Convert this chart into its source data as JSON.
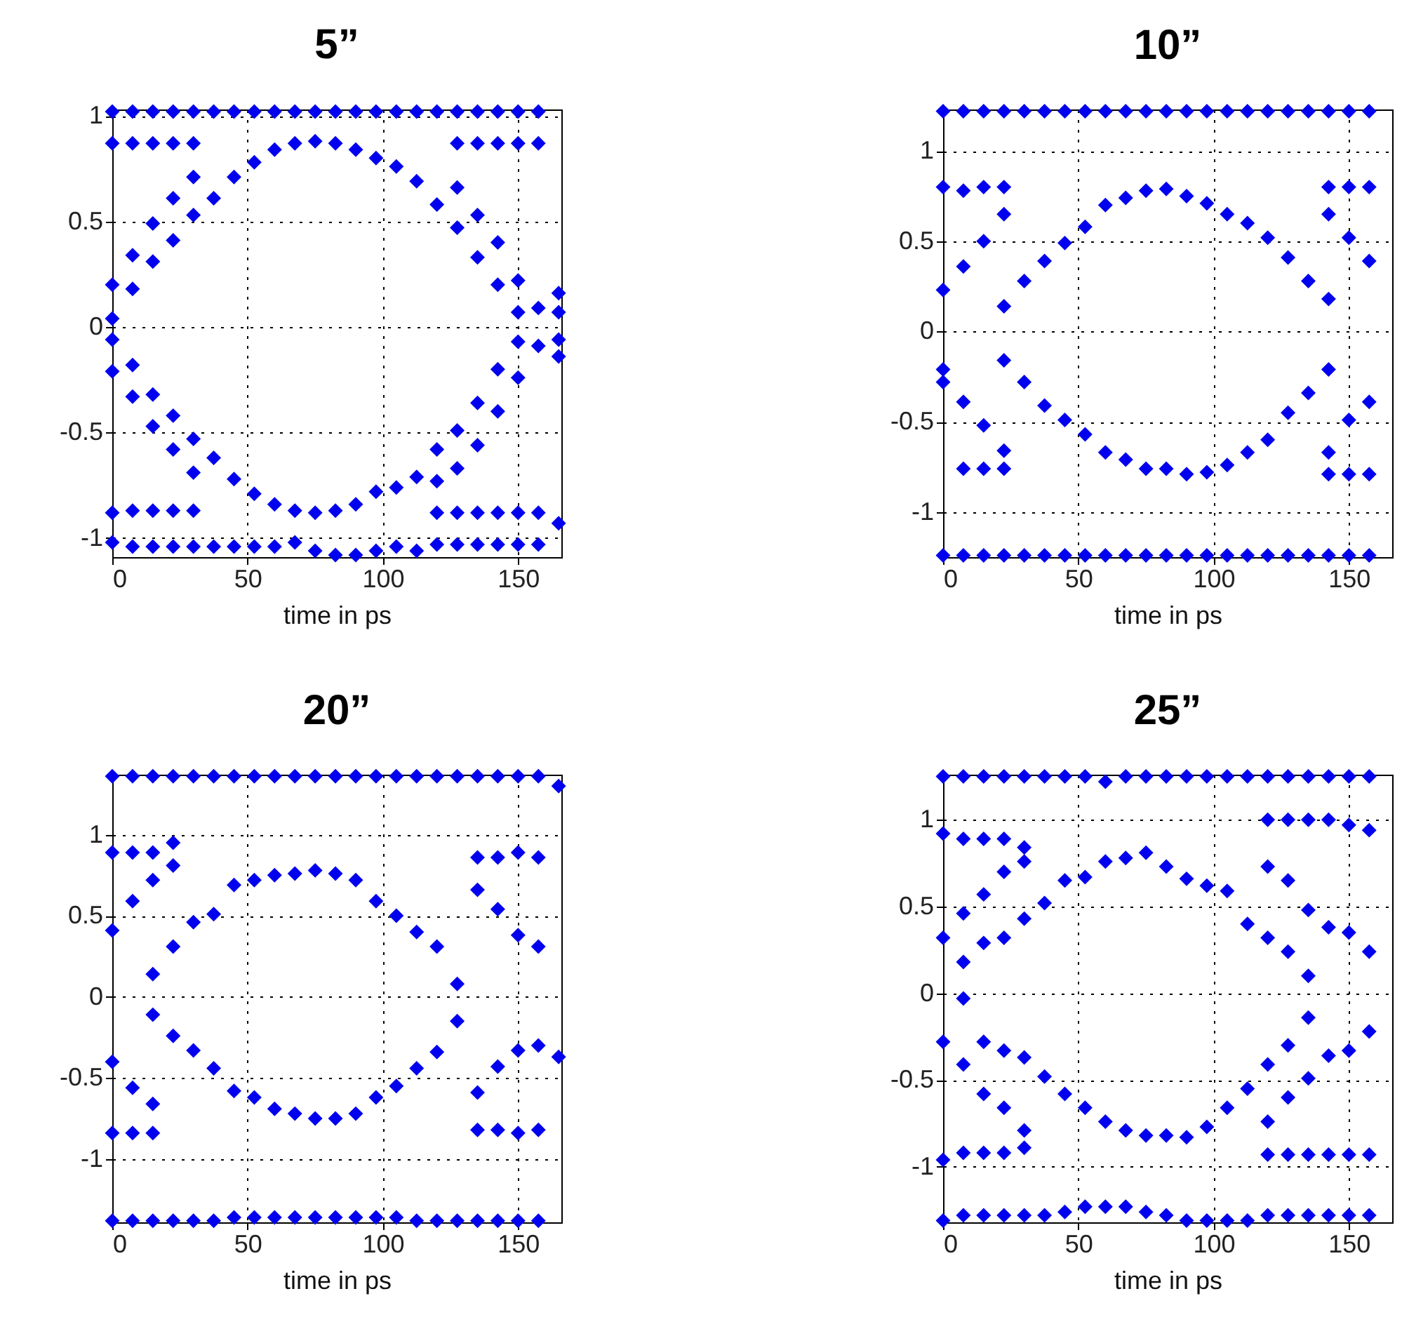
{
  "chart_data": [
    {
      "type": "scatter",
      "title": "5”",
      "xlabel": "time in ps",
      "xlim": [
        0,
        166
      ],
      "ylim": [
        -1.09,
        1.03
      ],
      "xticks": [
        0,
        50,
        100,
        150
      ],
      "yticks": [
        -1,
        -0.5,
        0,
        0.5,
        1
      ],
      "grid": true,
      "marker": "diamond",
      "x": [
        0,
        0,
        0,
        0,
        0,
        0,
        0,
        0,
        7.5,
        7.5,
        7.5,
        7.5,
        7.5,
        7.5,
        7.5,
        7.5,
        15,
        15,
        15,
        15,
        15,
        15,
        15,
        15,
        22.5,
        22.5,
        22.5,
        22.5,
        22.5,
        22.5,
        22.5,
        22.5,
        30,
        30,
        30,
        30,
        30,
        30,
        30,
        30,
        37.5,
        37.5,
        37.5,
        37.5,
        45,
        45,
        45,
        45,
        52.5,
        52.5,
        52.5,
        52.5,
        60,
        60,
        60,
        60,
        67.5,
        67.5,
        67.5,
        67.5,
        75,
        75,
        75,
        75,
        82.5,
        82.5,
        82.5,
        82.5,
        90,
        90,
        90,
        90,
        97.5,
        97.5,
        97.5,
        97.5,
        105,
        105,
        105,
        105,
        112.5,
        112.5,
        112.5,
        112.5,
        120,
        120,
        120,
        120,
        120,
        120,
        127.5,
        127.5,
        127.5,
        127.5,
        127.5,
        127.5,
        127.5,
        127.5,
        135,
        135,
        135,
        135,
        135,
        135,
        135,
        135,
        142.5,
        142.5,
        142.5,
        142.5,
        142.5,
        142.5,
        142.5,
        142.5,
        150,
        150,
        150,
        150,
        150,
        150,
        150,
        150,
        157.5,
        157.5,
        157.5,
        157.5,
        157.5,
        157.5,
        165,
        165,
        165,
        165,
        165
      ],
      "series": [
        {
          "color": "#0000ee",
          "values": [
            1.02,
            0.87,
            0.2,
            0.04,
            -0.06,
            -0.21,
            -0.88,
            -1.02,
            1.02,
            0.87,
            0.34,
            0.18,
            -0.18,
            -0.33,
            -0.87,
            -1.04,
            1.02,
            0.87,
            0.49,
            0.31,
            -0.32,
            -0.47,
            -0.87,
            -1.04,
            1.02,
            0.87,
            0.61,
            0.41,
            -0.42,
            -0.58,
            -0.87,
            -1.04,
            1.02,
            0.87,
            0.71,
            0.53,
            -0.53,
            -0.69,
            -0.87,
            -1.04,
            1.02,
            0.61,
            -0.62,
            -1.04,
            1.02,
            0.71,
            -0.72,
            -1.04,
            1.02,
            0.78,
            -0.79,
            -1.04,
            1.02,
            0.84,
            -0.84,
            -1.04,
            1.02,
            0.87,
            -0.87,
            -1.02,
            1.02,
            0.88,
            -0.88,
            -1.06,
            1.02,
            0.87,
            -0.87,
            -1.08,
            1.02,
            0.84,
            -0.84,
            -1.08,
            1.02,
            0.8,
            -0.78,
            -1.06,
            1.02,
            0.76,
            -0.76,
            -1.04,
            1.02,
            0.69,
            -0.71,
            -1.06,
            1.02,
            0.58,
            -0.58,
            -0.73,
            -0.88,
            -1.03,
            1.02,
            0.87,
            0.66,
            0.47,
            -0.49,
            -0.67,
            -0.88,
            -1.03,
            1.02,
            0.87,
            0.53,
            0.33,
            -0.36,
            -0.56,
            -0.88,
            -1.03,
            1.02,
            0.87,
            0.4,
            0.2,
            -0.2,
            -0.4,
            -0.88,
            -1.03,
            1.02,
            0.87,
            0.22,
            0.07,
            -0.07,
            -0.24,
            -0.88,
            -1.03,
            1.02,
            0.87,
            0.09,
            -0.09,
            -0.88,
            -1.03,
            0.16,
            0.07,
            -0.06,
            -0.14,
            -0.93
          ]
        }
      ]
    },
    {
      "type": "scatter",
      "title": "10”",
      "xlabel": "time in ps",
      "xlim": [
        0,
        166
      ],
      "ylim": [
        -1.25,
        1.23
      ],
      "xticks": [
        0,
        50,
        100,
        150
      ],
      "yticks": [
        -1,
        -0.5,
        0,
        0.5,
        1
      ],
      "grid": true,
      "marker": "diamond",
      "x": [
        0,
        0,
        0,
        0,
        0,
        0,
        7.5,
        7.5,
        7.5,
        7.5,
        7.5,
        7.5,
        15,
        15,
        15,
        15,
        15,
        15,
        22.5,
        22.5,
        22.5,
        22.5,
        22.5,
        22.5,
        22.5,
        22.5,
        30,
        30,
        30,
        30,
        37.5,
        37.5,
        37.5,
        37.5,
        45,
        45,
        45,
        45,
        52.5,
        52.5,
        52.5,
        52.5,
        60,
        60,
        60,
        60,
        67.5,
        67.5,
        67.5,
        67.5,
        75,
        75,
        75,
        75,
        82.5,
        82.5,
        82.5,
        82.5,
        90,
        90,
        90,
        90,
        97.5,
        97.5,
        97.5,
        97.5,
        105,
        105,
        105,
        105,
        112.5,
        112.5,
        112.5,
        112.5,
        120,
        120,
        120,
        120,
        127.5,
        127.5,
        127.5,
        127.5,
        135,
        135,
        135,
        135,
        142.5,
        142.5,
        142.5,
        142.5,
        142.5,
        142.5,
        142.5,
        142.5,
        150,
        150,
        150,
        150,
        150,
        150,
        157.5,
        157.5,
        157.5,
        157.5,
        157.5,
        157.5
      ],
      "series": [
        {
          "color": "#0000ee",
          "values": [
            1.22,
            0.8,
            0.23,
            -0.21,
            -0.28,
            -1.24,
            1.22,
            0.78,
            0.36,
            -0.39,
            -0.76,
            -1.24,
            1.22,
            0.8,
            0.5,
            -0.52,
            -0.76,
            -1.24,
            1.22,
            0.8,
            0.65,
            0.14,
            -0.16,
            -0.66,
            -0.76,
            -1.24,
            1.22,
            0.28,
            -0.28,
            -1.24,
            1.22,
            0.39,
            -0.41,
            -1.24,
            1.22,
            0.49,
            -0.49,
            -1.24,
            1.22,
            0.58,
            -0.57,
            -1.24,
            1.22,
            0.7,
            -0.67,
            -1.24,
            1.22,
            0.74,
            -0.71,
            -1.24,
            1.22,
            0.78,
            -0.76,
            -1.24,
            1.22,
            0.79,
            -0.76,
            -1.24,
            1.22,
            0.75,
            -0.79,
            -1.24,
            1.22,
            0.71,
            -0.78,
            -1.24,
            1.22,
            0.65,
            -0.74,
            -1.24,
            1.22,
            0.6,
            -0.67,
            -1.24,
            1.22,
            0.52,
            -0.6,
            -1.24,
            1.22,
            0.41,
            -0.45,
            -1.24,
            1.22,
            0.28,
            -0.34,
            -1.24,
            1.22,
            0.8,
            0.65,
            0.18,
            -0.21,
            -0.67,
            -0.79,
            -1.24,
            1.22,
            0.8,
            0.52,
            -0.49,
            -0.79,
            -1.24,
            1.22,
            0.8,
            0.39,
            -0.39,
            -0.79,
            -1.24
          ]
        }
      ]
    },
    {
      "type": "scatter",
      "title": "20”",
      "xlabel": "time in ps",
      "xlim": [
        0,
        166
      ],
      "ylim": [
        -1.39,
        1.37
      ],
      "xticks": [
        0,
        50,
        100,
        150
      ],
      "yticks": [
        -1,
        -0.5,
        0,
        0.5,
        1
      ],
      "grid": true,
      "marker": "diamond",
      "x": [
        0,
        0,
        0,
        0,
        0,
        0,
        7.5,
        7.5,
        7.5,
        7.5,
        7.5,
        7.5,
        15,
        15,
        15,
        15,
        15,
        15,
        15,
        15,
        22.5,
        22.5,
        22.5,
        22.5,
        22.5,
        22.5,
        30,
        30,
        30,
        30,
        37.5,
        37.5,
        37.5,
        37.5,
        45,
        45,
        45,
        45,
        52.5,
        52.5,
        52.5,
        52.5,
        60,
        60,
        60,
        60,
        67.5,
        67.5,
        67.5,
        67.5,
        75,
        75,
        75,
        75,
        82.5,
        82.5,
        82.5,
        82.5,
        90,
        90,
        90,
        90,
        97.5,
        97.5,
        97.5,
        97.5,
        105,
        105,
        105,
        105,
        112.5,
        112.5,
        112.5,
        112.5,
        120,
        120,
        120,
        120,
        127.5,
        127.5,
        127.5,
        127.5,
        135,
        135,
        135,
        135,
        135,
        135,
        142.5,
        142.5,
        142.5,
        142.5,
        142.5,
        142.5,
        150,
        150,
        150,
        150,
        150,
        150,
        157.5,
        157.5,
        157.5,
        157.5,
        157.5,
        157.5,
        165,
        165
      ],
      "series": [
        {
          "color": "#0000ee",
          "values": [
            1.36,
            0.89,
            0.41,
            -0.4,
            -0.84,
            -1.38,
            1.36,
            0.89,
            0.59,
            -0.56,
            -0.84,
            -1.38,
            1.36,
            0.89,
            0.72,
            0.14,
            -0.11,
            -0.66,
            -0.84,
            -1.38,
            1.36,
            0.95,
            0.81,
            0.31,
            -0.24,
            -1.38,
            1.36,
            0.46,
            -0.33,
            -1.38,
            1.36,
            0.51,
            -0.44,
            -1.38,
            1.36,
            0.69,
            -0.58,
            -1.36,
            1.36,
            0.72,
            -0.62,
            -1.36,
            1.36,
            0.75,
            -0.69,
            -1.36,
            1.36,
            0.76,
            -0.72,
            -1.36,
            1.36,
            0.78,
            -0.75,
            -1.36,
            1.36,
            0.76,
            -0.75,
            -1.36,
            1.36,
            0.72,
            -0.72,
            -1.36,
            1.36,
            0.59,
            -0.62,
            -1.36,
            1.36,
            0.5,
            -0.55,
            -1.36,
            1.36,
            0.4,
            -0.44,
            -1.38,
            1.36,
            0.31,
            -0.34,
            -1.38,
            1.36,
            0.08,
            -0.15,
            -1.38,
            1.36,
            0.86,
            0.66,
            -0.59,
            -0.82,
            -1.38,
            1.36,
            0.86,
            0.54,
            -0.43,
            -0.82,
            -1.38,
            1.36,
            0.89,
            0.38,
            -0.33,
            -0.84,
            -1.38,
            1.36,
            0.86,
            0.31,
            -0.3,
            -0.82,
            -1.38,
            1.3,
            -0.37
          ]
        }
      ]
    },
    {
      "type": "scatter",
      "title": "25”",
      "xlabel": "time in ps",
      "xlim": [
        0,
        166
      ],
      "ylim": [
        -1.32,
        1.26
      ],
      "xticks": [
        0,
        50,
        100,
        150
      ],
      "yticks": [
        -1,
        -0.5,
        0,
        0.5,
        1
      ],
      "grid": true,
      "marker": "diamond",
      "x": [
        0,
        0,
        0,
        0,
        0,
        0,
        7.5,
        7.5,
        7.5,
        7.5,
        7.5,
        7.5,
        7.5,
        7.5,
        15,
        15,
        15,
        15,
        15,
        15,
        15,
        15,
        22.5,
        22.5,
        22.5,
        22.5,
        22.5,
        22.5,
        22.5,
        22.5,
        30,
        30,
        30,
        30,
        30,
        30,
        30,
        30,
        37.5,
        37.5,
        37.5,
        37.5,
        45,
        45,
        45,
        45,
        52.5,
        52.5,
        52.5,
        52.5,
        60,
        60,
        60,
        60,
        67.5,
        67.5,
        67.5,
        67.5,
        75,
        75,
        75,
        75,
        82.5,
        82.5,
        82.5,
        82.5,
        90,
        90,
        90,
        90,
        97.5,
        97.5,
        97.5,
        97.5,
        105,
        105,
        105,
        105,
        112.5,
        112.5,
        112.5,
        112.5,
        120,
        120,
        120,
        120,
        120,
        120,
        120,
        120,
        127.5,
        127.5,
        127.5,
        127.5,
        127.5,
        127.5,
        127.5,
        127.5,
        135,
        135,
        135,
        135,
        135,
        135,
        135,
        135,
        142.5,
        142.5,
        142.5,
        142.5,
        142.5,
        142.5,
        150,
        150,
        150,
        150,
        150,
        150,
        157.5,
        157.5,
        157.5,
        157.5,
        157.5,
        157.5
      ],
      "series": [
        {
          "color": "#0000ee",
          "values": [
            1.25,
            0.92,
            0.32,
            -0.28,
            -0.96,
            -1.31,
            1.25,
            0.89,
            0.46,
            0.18,
            -0.03,
            -0.41,
            -0.92,
            -1.28,
            1.25,
            0.89,
            0.57,
            0.29,
            -0.28,
            -0.58,
            -0.92,
            -1.28,
            1.25,
            0.89,
            0.7,
            0.32,
            -0.33,
            -0.66,
            -0.92,
            -1.28,
            1.25,
            0.84,
            0.76,
            0.43,
            -0.37,
            -0.79,
            -0.89,
            -1.28,
            1.25,
            0.52,
            -0.48,
            -1.28,
            1.25,
            0.65,
            -0.58,
            -1.26,
            1.25,
            0.67,
            -0.66,
            -1.23,
            1.22,
            0.76,
            -0.74,
            -1.23,
            1.25,
            0.78,
            -0.79,
            -1.23,
            1.25,
            0.81,
            -0.82,
            -1.26,
            1.25,
            0.73,
            -0.82,
            -1.28,
            1.25,
            0.66,
            -0.83,
            -1.31,
            1.25,
            0.62,
            -0.77,
            -1.31,
            1.25,
            0.59,
            -0.66,
            -1.31,
            1.25,
            0.4,
            -0.55,
            -1.31,
            1.25,
            1.0,
            0.73,
            0.32,
            -0.41,
            -0.74,
            -0.93,
            -1.28,
            1.25,
            1.0,
            0.65,
            0.24,
            -0.3,
            -0.6,
            -0.93,
            -1.28,
            1.25,
            1.0,
            0.48,
            0.1,
            -0.14,
            -0.49,
            -0.93,
            -1.28,
            1.25,
            1.0,
            0.38,
            -0.36,
            -0.93,
            -1.28,
            1.25,
            0.97,
            0.35,
            -0.33,
            -0.93,
            -1.28,
            1.25,
            0.94,
            0.24,
            -0.22,
            -0.93,
            -1.28
          ]
        }
      ]
    }
  ]
}
